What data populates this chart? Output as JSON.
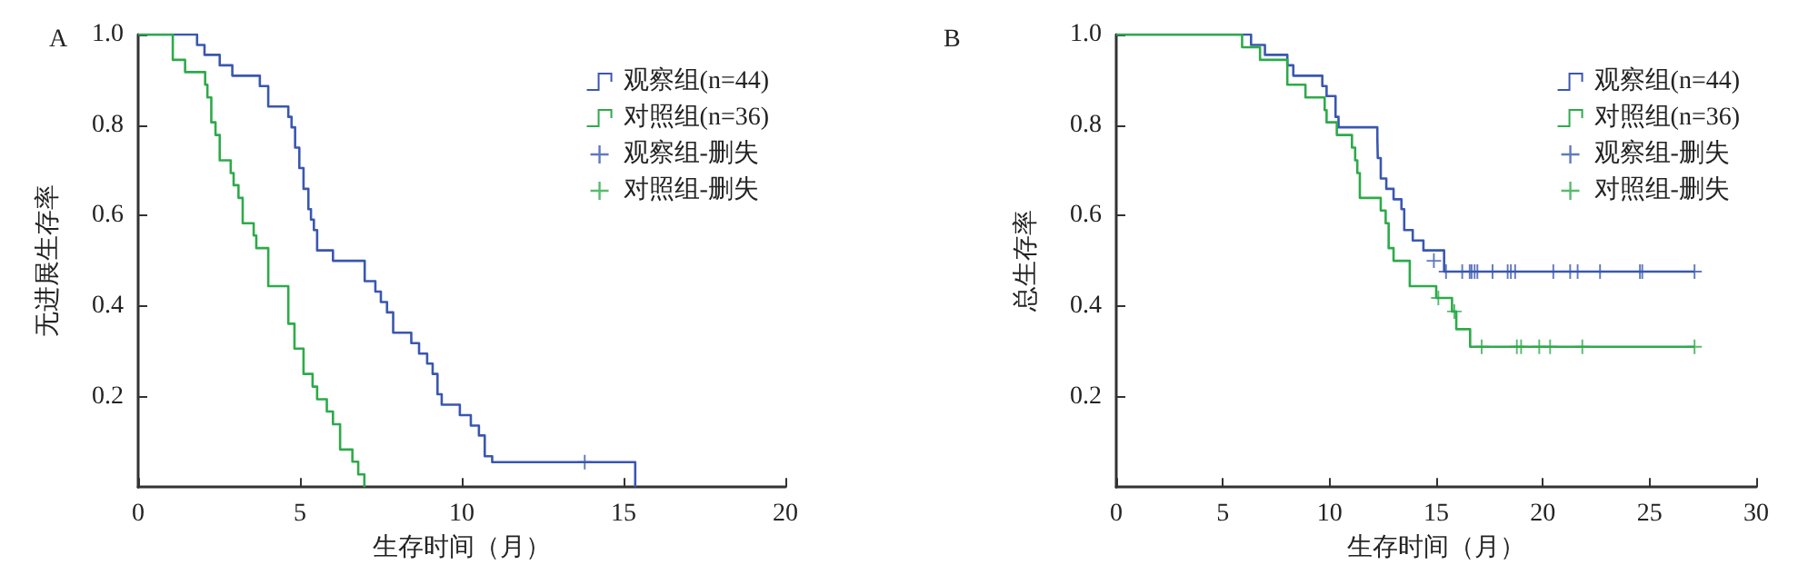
{
  "chart_data": [
    {
      "type": "step",
      "title": "A",
      "xlabel": "生存时间（月）",
      "ylabel": "无进展生存率",
      "xlim": [
        0,
        20
      ],
      "xticks": [
        0,
        5,
        10,
        15,
        20
      ],
      "ylim": [
        0,
        1
      ],
      "yticks": [
        0.2,
        0.4,
        0.6,
        0.8,
        {
          "value": 1,
          "label": "1.0"
        }
      ],
      "grid": false,
      "legend": "top right",
      "series": [
        {
          "name": "观察组(n=44)",
          "color": "#3a57b0",
          "x": [
            0,
            1.82,
            2.05,
            2.52,
            2.91,
            3.76,
            4.02,
            4.64,
            4.74,
            4.85,
            4.98,
            5.11,
            5.26,
            5.34,
            5.43,
            5.53,
            6.02,
            7.0,
            7.33,
            7.5,
            7.69,
            7.88,
            8.44,
            8.68,
            8.93,
            9.1,
            9.25,
            9.38,
            9.94,
            10.28,
            10.53,
            10.71,
            10.94,
            15.36
          ],
          "values": [
            1,
            0.977,
            0.955,
            0.932,
            0.909,
            0.886,
            0.841,
            0.818,
            0.795,
            0.75,
            0.705,
            0.659,
            0.614,
            0.591,
            0.568,
            0.523,
            0.5,
            0.455,
            0.432,
            0.409,
            0.386,
            0.341,
            0.318,
            0.295,
            0.273,
            0.25,
            0.205,
            0.182,
            0.159,
            0.136,
            0.114,
            0.068,
            0.055,
            0
          ]
        },
        {
          "name": "对照组(n=36)",
          "color": "#2eaa4a",
          "x": [
            0,
            1.07,
            1.45,
            2.07,
            2.14,
            2.26,
            2.39,
            2.52,
            2.86,
            2.95,
            3.1,
            3.23,
            3.57,
            3.65,
            4.02,
            4.64,
            4.83,
            5.11,
            5.39,
            5.53,
            5.83,
            6.02,
            6.24,
            6.62,
            6.8,
            6.99
          ],
          "values": [
            1,
            0.944,
            0.917,
            0.889,
            0.861,
            0.806,
            0.778,
            0.722,
            0.694,
            0.667,
            0.639,
            0.583,
            0.556,
            0.528,
            0.444,
            0.361,
            0.306,
            0.25,
            0.222,
            0.194,
            0.167,
            0.139,
            0.083,
            0.056,
            0.028,
            0
          ]
        },
        {
          "name": "观察组-删失",
          "type": "scatter",
          "marker": "cross",
          "color": "#3a57b0",
          "x": [
            13.8
          ],
          "values": [
            0.055
          ]
        },
        {
          "name": "对照组-删失",
          "type": "scatter",
          "marker": "cross",
          "color": "#2eaa4a"
        }
      ]
    },
    {
      "type": "step",
      "title": "B",
      "xlabel": "生存时间（月）",
      "ylabel": "总生存率",
      "xlim": [
        0,
        30
      ],
      "xticks": [
        0,
        5,
        10,
        15,
        20,
        25,
        30
      ],
      "ylim": [
        0,
        1
      ],
      "yticks": [
        0.2,
        0.4,
        0.6,
        0.8,
        {
          "value": 1,
          "label": "1.0"
        }
      ],
      "grid": false,
      "legend": "top right",
      "series": [
        {
          "name": "观察组(n=44)",
          "color": "#3a57b0",
          "x": [
            0,
            6.32,
            6.97,
            8.02,
            8.3,
            9.66,
            9.86,
            10.28,
            10.42,
            12.24,
            12.26,
            12.4,
            12.66,
            13.0,
            13.37,
            13.5,
            13.9,
            14.4,
            15.37,
            27.11
          ],
          "values": [
            1,
            0.977,
            0.955,
            0.932,
            0.909,
            0.886,
            0.864,
            0.818,
            0.795,
            0.773,
            0.727,
            0.682,
            0.659,
            0.636,
            0.614,
            0.568,
            0.545,
            0.523,
            0.476,
            0.476
          ]
        },
        {
          "name": "对照组(n=36)",
          "color": "#2eaa4a",
          "x": [
            0,
            5.9,
            6.74,
            8.02,
            8.87,
            9.77,
            9.86,
            10.34,
            11.05,
            11.2,
            11.3,
            11.42,
            12.4,
            12.63,
            12.77,
            13.0,
            13.76,
            15.0,
            15.74,
            15.94,
            16.59,
            27.11
          ],
          "values": [
            1,
            0.972,
            0.944,
            0.889,
            0.861,
            0.833,
            0.806,
            0.778,
            0.75,
            0.722,
            0.694,
            0.639,
            0.611,
            0.583,
            0.528,
            0.5,
            0.444,
            0.418,
            0.388,
            0.349,
            0.31,
            0.31
          ]
        },
        {
          "name": "观察组-删失",
          "type": "scatter",
          "marker": "cross",
          "color": "#3a57b0",
          "x": [
            14.89,
            15.46,
            16.22,
            16.57,
            16.66,
            16.8,
            16.93,
            17.64,
            18.35,
            18.5,
            18.7,
            20.49,
            21.28,
            21.63,
            22.68,
            24.55,
            24.66,
            27.11
          ],
          "values": [
            0.5,
            0.476,
            0.476,
            0.476,
            0.476,
            0.476,
            0.476,
            0.476,
            0.476,
            0.476,
            0.476,
            0.476,
            0.476,
            0.476,
            0.476,
            0.476,
            0.476,
            0.476
          ]
        },
        {
          "name": "对照组-删失",
          "type": "scatter",
          "marker": "cross",
          "color": "#2eaa4a",
          "x": [
            15.1,
            15.85,
            17.13,
            18.78,
            18.98,
            19.83,
            20.34,
            21.85,
            27.11
          ],
          "values": [
            0.418,
            0.388,
            0.31,
            0.31,
            0.31,
            0.31,
            0.31,
            0.31,
            0.31
          ]
        }
      ]
    }
  ]
}
